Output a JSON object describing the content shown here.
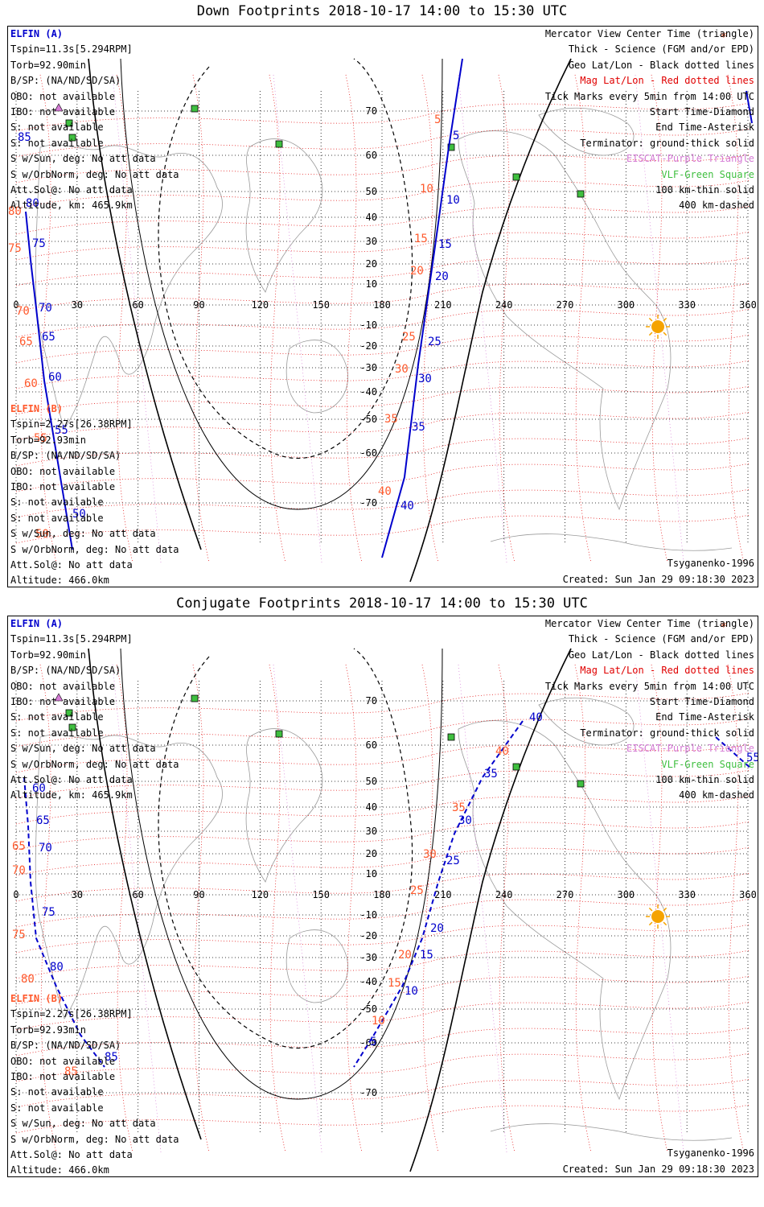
{
  "panels": [
    {
      "title": "Down Footprints 2018-10-17 14:00 to 15:30 UTC",
      "conjugate": false,
      "elfin_a": {
        "name": "ELFIN (A)",
        "lines": [
          "Tspin=11.3s[5.294RPM]",
          "Torb=92.90min",
          "B/SP: (NA/ND/SD/SA)",
          "OBO: not available",
          "IBO: not available",
          "S: not available",
          "S: not available",
          "S w/Sun, deg: No att data",
          "S w/OrbNorm, deg: No att data",
          "Att.Sol@: No att data",
          "Altitude, km: 465.9km"
        ]
      },
      "elfin_b": {
        "name": "ELFIN (B)",
        "lines": [
          "Tspin=2.27s[26.38RPM]",
          "Torb=92.93min",
          "B/SP: (NA/ND/SD/SA)",
          "OBO: not available",
          "IBO: not available",
          "S: not available",
          "S: not available",
          "S w/Sun, deg: No att data",
          "S w/OrbNorm, deg: No att data",
          "Att.Sol@: No att data",
          "Altitude: 466.0km"
        ]
      },
      "legend": [
        "Mercator View Center Time (triangle)",
        "Thick - Science (FGM and/or EPD)",
        "Geo Lat/Lon - Black dotted lines",
        "Mag Lat/Lon - Red dotted lines",
        "Tick Marks every 5min from 14:00 UTC",
        "Start Time-Diamond",
        "End Time-Asterisk",
        "Terminator: ground-thick solid",
        "EISCAT-Purple Triangle",
        "VLF-Green Square",
        "100 km-thin solid",
        "400 km-dashed"
      ],
      "model": "Tsyganenko-1996",
      "created": "Created: Sun Jan 29 09:18:30 2023",
      "track_a_labels": [
        "5",
        "10",
        "15",
        "20",
        "25",
        "30",
        "35",
        "40",
        "85",
        "80",
        "75",
        "70",
        "65",
        "60",
        "55",
        "50"
      ],
      "track_b_labels": [
        "5",
        "10",
        "15",
        "20",
        "25",
        "30",
        "35",
        "40",
        "85",
        "80",
        "75",
        "70",
        "65",
        "60",
        "55",
        "50"
      ]
    },
    {
      "title": "Conjugate Footprints 2018-10-17 14:00 to 15:30 UTC",
      "conjugate": true,
      "elfin_a": {
        "name": "ELFIN (A)",
        "lines": [
          "Tspin=11.3s[5.294RPM]",
          "Torb=92.90min",
          "B/SP: (NA/ND/SD/SA)",
          "OBO: not available",
          "IBO: not available",
          "S: not available",
          "S: not available",
          "S w/Sun, deg: No att data",
          "S w/OrbNorm, deg: No att data",
          "Att.Sol@: No att data",
          "Altitude, km: 465.9km"
        ]
      },
      "elfin_b": {
        "name": "ELFIN (B)",
        "lines": [
          "Tspin=2.27s[26.38RPM]",
          "Torb=92.93min",
          "B/SP: (NA/ND/SD/SA)",
          "OBO: not available",
          "IBO: not available",
          "S: not available",
          "S: not available",
          "S w/Sun, deg: No att data",
          "S w/OrbNorm, deg: No att data",
          "Att.Sol@: No att data",
          "Altitude: 466.0km"
        ]
      },
      "legend": [
        "Mercator View Center Time (triangle)",
        "Thick - Science (FGM and/or EPD)",
        "Geo Lat/Lon - Black dotted lines",
        "Mag Lat/Lon - Red dotted lines",
        "Tick Marks every 5min from 14:00 UTC",
        "Start Time-Diamond",
        "End Time-Asterisk",
        "Terminator: ground-thick solid",
        "EISCAT-Purple Triangle",
        "VLF-Green Square",
        "100 km-thin solid",
        "400 km-dashed"
      ],
      "model": "Tsyganenko-1996",
      "created": "Created: Sun Jan 29 09:18:30 2023",
      "track_a_labels": [
        "40",
        "35",
        "30",
        "25",
        "20",
        "15",
        "10",
        "5",
        "60",
        "65",
        "70",
        "75",
        "80",
        "85",
        "55"
      ],
      "track_b_labels": [
        "40",
        "35",
        "30",
        "25",
        "20",
        "15",
        "10",
        "5",
        "60",
        "65",
        "70",
        "75",
        "80",
        "85",
        "55"
      ]
    }
  ],
  "map": {
    "lon_ticks": [
      "0",
      "30",
      "60",
      "90",
      "120",
      "150",
      "180",
      "210",
      "240",
      "270",
      "300",
      "330",
      "360"
    ],
    "lat_ticks": [
      "70",
      "60",
      "50",
      "40",
      "30",
      "20",
      "10",
      "-10",
      "-20",
      "-30",
      "-40",
      "-50",
      "-60",
      "-70"
    ]
  },
  "colors": {
    "elfin_a": "#0000cc",
    "elfin_b": "#ff5a2d",
    "mag_grid": "#e00000",
    "geo_grid": "#000000",
    "eiscat": "#d57bd5",
    "vlf": "#3fbf3f",
    "sun": "#f5a300"
  }
}
